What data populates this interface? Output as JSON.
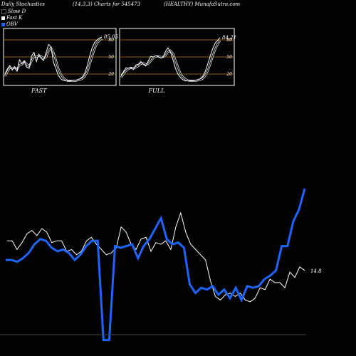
{
  "header": {
    "left": "Daily Stochastics",
    "center": "(14,3,3) Charts for 545473",
    "right": "(HEALTHY) MunafaSutra.com"
  },
  "legend": [
    {
      "label": "Slow D",
      "color": "#000000"
    },
    {
      "label": "Fast K",
      "color": "#ffffff"
    },
    {
      "label": "OBV",
      "color": "#1e64ff"
    }
  ],
  "colors": {
    "background": "#000000",
    "grid": "#b8860b",
    "obv": "#1e64ff",
    "price": "#ffffff"
  },
  "chart_data": [
    {
      "type": "line",
      "title": "FAST",
      "ylim": [
        0,
        100
      ],
      "levels": [
        "80",
        "50",
        "20"
      ],
      "last_value_label": "85.05",
      "series": [
        {
          "name": "Fast K",
          "values": [
            20,
            29,
            35,
            27,
            33,
            25,
            45,
            38,
            42,
            32,
            30,
            52,
            58,
            42,
            55,
            47,
            44,
            58,
            72,
            68,
            41,
            30,
            18,
            12,
            9,
            8,
            8,
            8,
            9,
            9,
            10,
            12,
            15,
            22,
            35,
            52,
            66,
            75,
            80,
            83,
            85
          ]
        },
        {
          "name": "Slow D",
          "values": [
            16,
            24,
            31,
            30,
            31,
            28,
            36,
            37,
            42,
            37,
            34,
            43,
            51,
            50,
            52,
            51,
            48,
            50,
            60,
            66,
            58,
            45,
            30,
            20,
            14,
            10,
            8,
            8,
            8,
            8,
            9,
            10,
            12,
            16,
            24,
            37,
            51,
            64,
            74,
            79,
            82
          ]
        }
      ]
    },
    {
      "type": "line",
      "title": "FULL",
      "ylim": [
        0,
        100
      ],
      "levels": [
        "80",
        "50",
        "20"
      ],
      "last_value_label": "84.21",
      "series": [
        {
          "name": "Fast K",
          "values": [
            18,
            24,
            31,
            30,
            31,
            28,
            36,
            37,
            42,
            37,
            34,
            43,
            51,
            50,
            52,
            51,
            48,
            50,
            60,
            66,
            58,
            45,
            30,
            20,
            14,
            10,
            8,
            8,
            8,
            8,
            9,
            10,
            12,
            16,
            24,
            37,
            51,
            64,
            74,
            79,
            84
          ]
        },
        {
          "name": "Slow D",
          "values": [
            14,
            20,
            26,
            29,
            31,
            30,
            32,
            34,
            38,
            39,
            37,
            38,
            43,
            48,
            51,
            51,
            50,
            50,
            53,
            59,
            61,
            56,
            44,
            32,
            21,
            15,
            11,
            9,
            8,
            8,
            8,
            9,
            10,
            12,
            17,
            25,
            37,
            51,
            63,
            72,
            79
          ]
        }
      ]
    },
    {
      "type": "line",
      "title": "",
      "last_value_label": "14.8",
      "series": [
        {
          "name": "Price",
          "values": [
            14.98,
            14.98,
            14.93,
            14.97,
            15.02,
            15.04,
            15.01,
            15.05,
            15.03,
            14.97,
            14.98,
            14.98,
            14.92,
            14.93,
            14.9,
            14.92,
            14.98,
            15.0,
            14.96,
            14.93,
            14.9,
            14.91,
            14.94,
            15.06,
            15.03,
            14.96,
            14.93,
            14.99,
            15.0,
            14.92,
            14.97,
            14.96,
            14.98,
            14.93,
            15.06,
            15.14,
            15.03,
            14.96,
            14.93,
            14.9,
            14.87,
            14.75,
            14.66,
            14.64,
            14.67,
            14.68,
            14.66,
            14.68,
            14.64,
            14.63,
            14.65,
            14.71,
            14.7,
            14.76,
            14.74,
            14.74,
            14.71,
            14.8,
            14.77,
            14.83,
            14.81
          ]
        },
        {
          "name": "OBV",
          "values": [
            14.87,
            14.87,
            14.86,
            14.88,
            14.91,
            14.96,
            14.99,
            14.98,
            14.94,
            14.92,
            14.93,
            14.91,
            14.87,
            14.9,
            14.95,
            14.98,
            14.98,
            14.41,
            14.41,
            14.95,
            14.94,
            14.95,
            14.96,
            14.88,
            14.95,
            14.99,
            15.05,
            15.11,
            14.99,
            14.96,
            14.97,
            14.94,
            14.73,
            14.68,
            14.71,
            14.7,
            14.72,
            14.67,
            14.7,
            14.65,
            14.71,
            14.64,
            14.72,
            14.71,
            14.72,
            14.76,
            14.78,
            14.81,
            14.95,
            14.95,
            15.09,
            15.16,
            15.28
          ]
        }
      ]
    }
  ]
}
